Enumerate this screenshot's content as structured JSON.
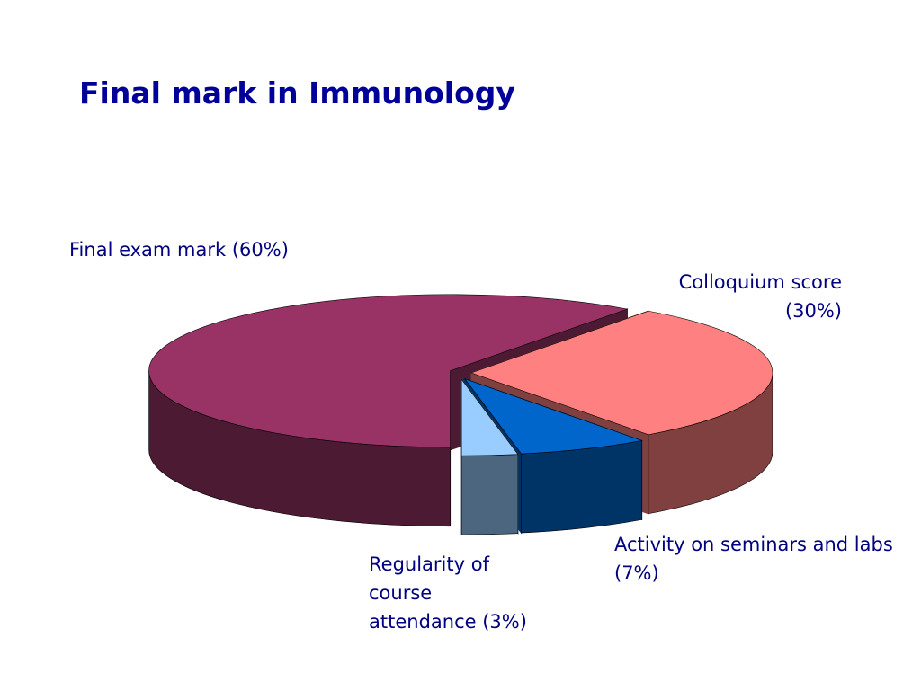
{
  "chart_data": {
    "type": "pie3d",
    "title": "Final mark in Immunology",
    "categories": [
      "Final exam mark (60%)",
      "Colloquium score (30%)",
      "Activity on seminars and labs (7%)",
      "Regularity of course attendance (3%)"
    ],
    "values": [
      60,
      30,
      7,
      3
    ],
    "colors": [
      "#993366",
      "#ff8080",
      "#0066cc",
      "#99ccff"
    ]
  }
}
